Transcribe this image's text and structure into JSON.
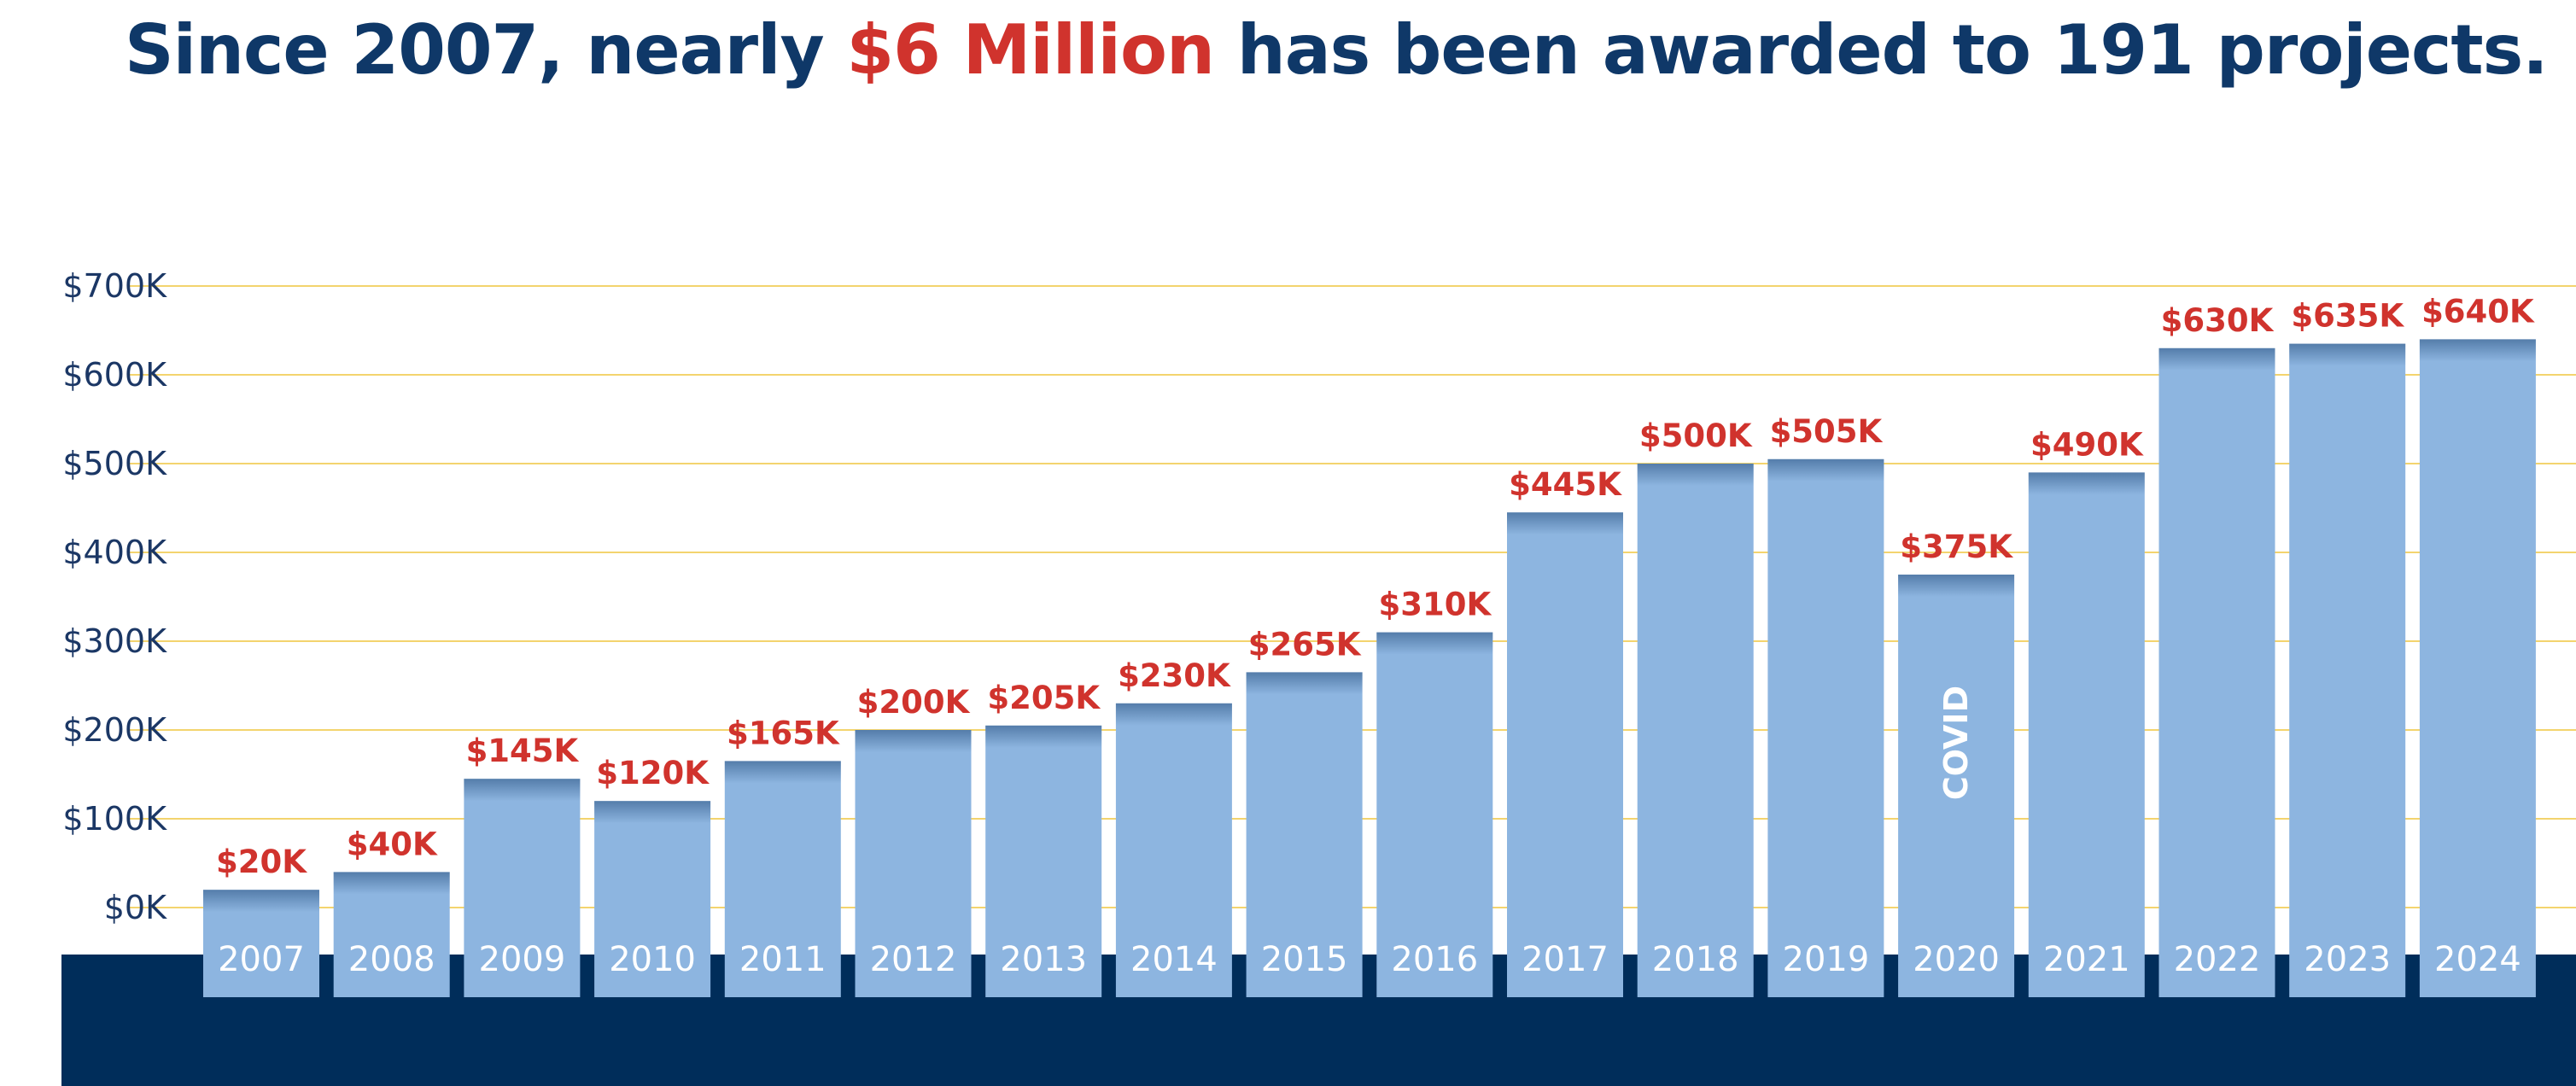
{
  "headline": {
    "part1": "Since 2007, nearly ",
    "accent": "$6 Million",
    "part2": " has been awarded to 191 projects."
  },
  "colors": {
    "title": "#0f3868",
    "accent": "#d0332d",
    "bar": "#8db5e0",
    "base_band": "#002d5a",
    "gridline": "#f3d46e",
    "axis_text": "#1b3765"
  },
  "chart_data": {
    "type": "bar",
    "categories": [
      "2007",
      "2008",
      "2009",
      "2010",
      "2011",
      "2012",
      "2013",
      "2014",
      "2015",
      "2016",
      "2017",
      "2018",
      "2019",
      "2020",
      "2021",
      "2022",
      "2023",
      "2024"
    ],
    "values": [
      20000,
      40000,
      145000,
      120000,
      165000,
      200000,
      205000,
      230000,
      265000,
      310000,
      445000,
      500000,
      505000,
      375000,
      490000,
      630000,
      635000,
      640000
    ],
    "value_labels": [
      "$20K",
      "$40K",
      "$145K",
      "$120K",
      "$165K",
      "$200K",
      "$205K",
      "$230K",
      "$265K",
      "$310K",
      "$445K",
      "$500K",
      "$505K",
      "$375K",
      "$490K",
      "$630K",
      "$635K",
      "$640K"
    ],
    "annotations": [
      {
        "category": "2020",
        "text": "COVID"
      }
    ],
    "y_ticks": [
      0,
      100000,
      200000,
      300000,
      400000,
      500000,
      600000,
      700000
    ],
    "y_tick_labels": [
      "$0K",
      "$100K",
      "$200K",
      "$300K",
      "$400K",
      "$500K",
      "$600K",
      "$700K"
    ],
    "ylim": [
      0,
      700000
    ],
    "grid": true,
    "legend": "none"
  }
}
